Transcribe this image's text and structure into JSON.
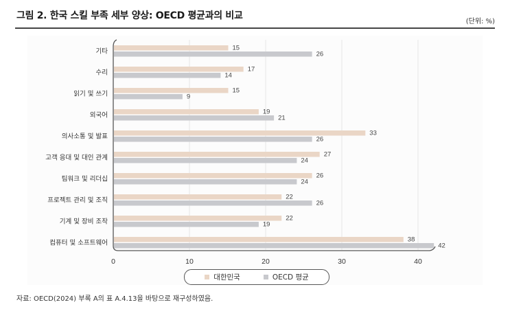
{
  "header": {
    "title": "그림 2. 한국 스킬 부족 세부 양상: OECD 평균과의 비교",
    "unit": "(단위: %)"
  },
  "legend": {
    "items": [
      {
        "label": "대한민국",
        "color": "#ead6c6"
      },
      {
        "label": "OECD 평균",
        "color": "#c8c9cd"
      }
    ]
  },
  "footer": {
    "source": "자료: OECD(2024) 부록 A의 표 A.4.13을 바탕으로 재구성하였음."
  },
  "chart_data": {
    "type": "bar",
    "orientation": "horizontal",
    "title": "그림 2. 한국 스킬 부족 세부 양상: OECD 평균과의 비교",
    "unit": "%",
    "xlabel": "",
    "ylabel": "",
    "xlim": [
      0,
      45
    ],
    "xticks": [
      0,
      10,
      20,
      30,
      40
    ],
    "grid": "vertical",
    "legend_position": "bottom",
    "categories": [
      "기타",
      "수리",
      "읽기 및 쓰기",
      "외국어",
      "의사소통 및 발표",
      "고객 응대 및 대인 관계",
      "팀워크 및 리더십",
      "프로젝트 관리 및 조직",
      "기계 및 장비 조작",
      "컴퓨터 및 소프트웨어"
    ],
    "series": [
      {
        "name": "대한민국",
        "color": "#ead6c6",
        "values": [
          15,
          17,
          15,
          19,
          33,
          27,
          26,
          22,
          22,
          38
        ]
      },
      {
        "name": "OECD 평균",
        "color": "#c8c9cd",
        "values": [
          26,
          14,
          9,
          21,
          26,
          24,
          24,
          26,
          19,
          42
        ]
      }
    ]
  }
}
